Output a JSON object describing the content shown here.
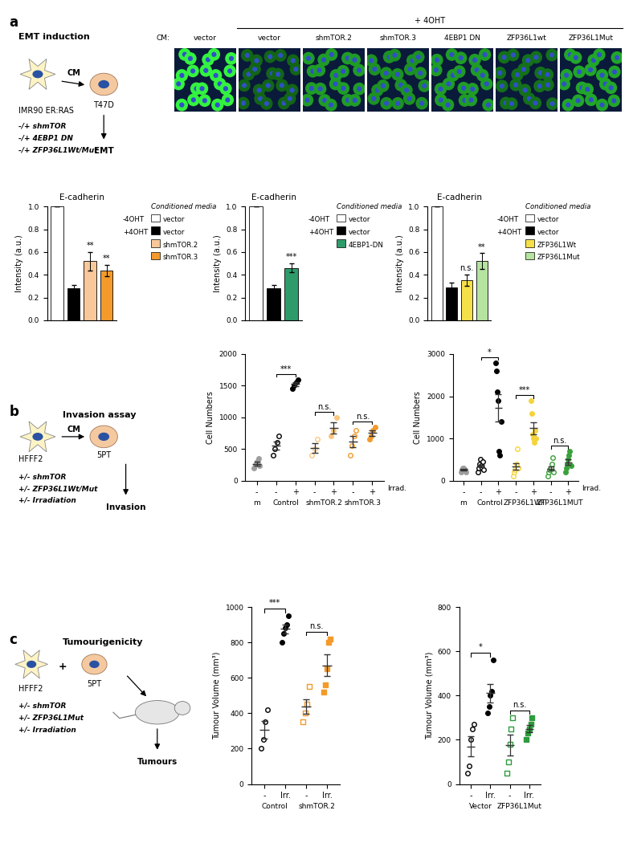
{
  "chart_data": [
    {
      "type": "bar",
      "title": "E-cadherin",
      "y_label": "Intensity (a.u.)",
      "categories": [
        null,
        null,
        null,
        null
      ],
      "values": [
        1.0,
        0.28,
        0.52,
        0.44
      ],
      "errors": [
        0,
        0.03,
        0.08,
        0.05
      ],
      "colors": [
        "#ffffff",
        "#000000",
        "#f8c89a",
        "#f39a2b"
      ],
      "marks": [
        null,
        null,
        "**",
        "**"
      ],
      "legend_title": "Conditioned media",
      "legend_groups": [
        "-4OHT",
        "+4OHT",
        "+4OHT",
        "+4OHT"
      ],
      "legend_entries": [
        "vector",
        "vector",
        "shmTOR.2",
        "shmTOR.3"
      ],
      "ylim": [
        0,
        1.0
      ],
      "yticks": [
        {
          "value": 0,
          "label": "0.0"
        },
        0.2,
        0.4,
        0.6,
        0.8,
        1.0
      ],
      "tick_labels": "y"
    },
    {
      "type": "bar",
      "title": "E-cadherin",
      "y_label": "Intensity (a.u.)",
      "categories": [
        null,
        null,
        null
      ],
      "values": [
        1.0,
        0.28,
        0.46
      ],
      "errors": [
        0,
        0.03,
        0.04
      ],
      "colors": [
        "#ffffff",
        "#000000",
        "#2e9b6a"
      ],
      "marks": [
        null,
        null,
        "***"
      ],
      "legend_title": "Conditioned media",
      "legend_groups": [
        "-4OHT",
        "+4OHT",
        "+4OHT"
      ],
      "legend_entries": [
        "vector",
        "vector",
        "4EBP1-DN"
      ],
      "ylim": [
        0,
        1.0
      ],
      "yticks": [
        {
          "value": 0,
          "label": "0.0"
        },
        0.2,
        0.4,
        0.6,
        0.8,
        1.0
      ],
      "tick_labels": "y"
    },
    {
      "type": "bar",
      "title": "E-cadherin",
      "y_label": "Intensity (a.u.)",
      "categories": [
        null,
        null,
        null,
        null
      ],
      "values": [
        1.0,
        0.29,
        0.35,
        0.52
      ],
      "errors": [
        0,
        0.04,
        0.05,
        0.07
      ],
      "colors": [
        "#ffffff",
        "#000000",
        "#f5e04a",
        "#b5e3a0"
      ],
      "marks": [
        null,
        null,
        "n.s.",
        "**"
      ],
      "legend_title": "Conditioned media",
      "legend_groups": [
        "-4OHT",
        "+4OHT",
        "+4OHT",
        "+4OHT"
      ],
      "legend_entries": [
        "vector",
        "vector",
        "ZFP36L1Wt",
        "ZFP36L1Mut"
      ],
      "ylim": [
        0,
        1.0
      ],
      "yticks": [
        {
          "value": 0,
          "label": "0.0"
        },
        0.2,
        0.4,
        0.6,
        0.8,
        1.0
      ],
      "tick_labels": "y"
    },
    {
      "type": "scatter",
      "y_label": "Cell Numbers",
      "categories": [
        "-",
        "-",
        "+",
        "-",
        "+",
        "-",
        "+"
      ],
      "groups": [
        {
          "label": "m",
          "positions": [
            0
          ]
        },
        {
          "label": "Control",
          "positions": [
            1,
            2
          ]
        },
        {
          "label": "shmTOR.2",
          "positions": [
            3,
            4
          ]
        },
        {
          "label": "shmTOR.3",
          "positions": [
            5,
            6
          ]
        }
      ],
      "irradiation_label": "Irrad.",
      "points": [
        [
          200,
          250,
          300,
          350,
          230
        ],
        [
          400,
          500,
          600,
          700
        ],
        [
          1450,
          1500,
          1550,
          1600
        ],
        [
          400,
          500,
          650
        ],
        [
          700,
          800,
          1000
        ],
        [
          400,
          550,
          700,
          800
        ],
        [
          650,
          700,
          800,
          850
        ]
      ],
      "colors": [
        "#9e9e9e",
        "#000000",
        "#000000",
        "#f9c77e",
        "#f9c77e",
        "#f39a2b",
        "#f39a2b"
      ],
      "filled": [
        true,
        false,
        true,
        false,
        true,
        false,
        true
      ],
      "markers": [
        "circle",
        "circle",
        "circle",
        "circle",
        "circle",
        "circle",
        "circle"
      ],
      "comparisons": [
        {
          "between": [
            1,
            2
          ],
          "label": "***"
        },
        {
          "between": [
            3,
            4
          ],
          "label": "n.s."
        },
        {
          "between": [
            5,
            6
          ],
          "label": "n.s."
        }
      ],
      "ylim": [
        0,
        2000
      ],
      "yticks": [
        0,
        500,
        1000,
        1500,
        2000
      ]
    },
    {
      "type": "scatter",
      "y_label": "Cell Numbers",
      "categories": [
        "-",
        "-",
        "+",
        "-",
        "+",
        "-",
        "+"
      ],
      "groups": [
        {
          "label": "m",
          "positions": [
            0
          ]
        },
        {
          "label": "Control",
          "positions": [
            1,
            2
          ]
        },
        {
          "label": "ZFP36L1WT",
          "positions": [
            3,
            4
          ]
        },
        {
          "label": "ZFP36L1MUT",
          "positions": [
            5,
            6
          ]
        }
      ],
      "irradiation_label": "Irrad.",
      "points": [
        [
          200,
          250,
          300,
          300,
          250,
          200
        ],
        [
          200,
          300,
          400,
          500,
          350,
          300,
          450,
          250
        ],
        [
          2800,
          2600,
          2100,
          1900,
          700,
          600,
          1400
        ],
        [
          100,
          200,
          250,
          300,
          400,
          750,
          300
        ],
        [
          1900,
          1600,
          1100,
          1000,
          900,
          1200,
          1000
        ],
        [
          100,
          200,
          250,
          300,
          400,
          550,
          200
        ],
        [
          200,
          300,
          400,
          500,
          600,
          700,
          350
        ]
      ],
      "colors": [
        "#9e9e9e",
        "#000000",
        "#000000",
        "#f5d43a",
        "#f5d43a",
        "#3aa23a",
        "#3aa23a"
      ],
      "filled": [
        true,
        false,
        true,
        false,
        true,
        false,
        true
      ],
      "markers": [
        "circle",
        "circle",
        "circle",
        "circle",
        "circle",
        "circle",
        "circle"
      ],
      "comparisons": [
        {
          "between": [
            1,
            2
          ],
          "label": "*"
        },
        {
          "between": [
            3,
            4
          ],
          "label": "***"
        },
        {
          "between": [
            5,
            6
          ],
          "label": "n.s."
        }
      ],
      "ylim": [
        0,
        3000
      ],
      "yticks": [
        0,
        1000,
        2000,
        3000
      ]
    },
    {
      "type": "scatter",
      "y_label": "Tumour Volume (mm³)",
      "categories": [
        "-",
        "Irr.",
        "-",
        "Irr."
      ],
      "groups": [
        {
          "label": "Control",
          "positions": [
            0,
            1
          ]
        },
        {
          "label": "shmTOR.2",
          "positions": [
            2,
            3
          ]
        }
      ],
      "points": [
        [
          200,
          250,
          350,
          420
        ],
        [
          800,
          850,
          880,
          900,
          950
        ],
        [
          350,
          400,
          450,
          550
        ],
        [
          520,
          560,
          650,
          800,
          820
        ]
      ],
      "colors": [
        "#000000",
        "#000000",
        "#f39a2b",
        "#f39a2b"
      ],
      "filled": [
        false,
        true,
        false,
        true
      ],
      "markers": [
        "circle",
        "circle",
        "square",
        "square"
      ],
      "comparisons": [
        {
          "between": [
            0,
            1
          ],
          "label": "***"
        },
        {
          "between": [
            2,
            3
          ],
          "label": "n.s."
        }
      ],
      "ylim": [
        0,
        1000
      ],
      "yticks": [
        0,
        200,
        400,
        600,
        800,
        1000
      ]
    },
    {
      "type": "scatter",
      "y_label": "Tumour Volume (mm³)",
      "categories": [
        "-",
        "Irr.",
        "-",
        "Irr."
      ],
      "groups": [
        {
          "label": "Vector",
          "positions": [
            0,
            1
          ]
        },
        {
          "label": "ZFP36L1Mut",
          "positions": [
            2,
            3
          ]
        }
      ],
      "points": [
        [
          50,
          80,
          200,
          250,
          270
        ],
        [
          320,
          350,
          400,
          420,
          560
        ],
        [
          50,
          100,
          180,
          250,
          300
        ],
        [
          200,
          230,
          250,
          270,
          300
        ]
      ],
      "colors": [
        "#000000",
        "#000000",
        "#2e9b3e",
        "#2e9b3e"
      ],
      "filled": [
        false,
        true,
        false,
        true
      ],
      "markers": [
        "circle",
        "circle",
        "square",
        "square"
      ],
      "comparisons": [
        {
          "between": [
            0,
            1
          ],
          "label": "*"
        },
        {
          "between": [
            2,
            3
          ],
          "label": "n.s."
        }
      ],
      "ylim": [
        0,
        800
      ],
      "yticks": [
        0,
        200,
        400,
        600,
        800
      ]
    }
  ],
  "diagram": {
    "panel_labels": [
      "a",
      "b",
      "c"
    ],
    "a": {
      "title": "EMT induction",
      "donor": "IMR90 ER:RAS",
      "conditions": [
        "-/+ shmTOR",
        "-/+ 4EBP1 DN",
        "-/+ ZFP36L1Wt/Mut"
      ],
      "transfer": "CM",
      "recipient": "T47D",
      "readout": "EMT",
      "treatment": "+ 4OHT",
      "row_label": "CM:",
      "image_labels": [
        "vector",
        "vector",
        "shmTOR.2",
        "shmTOR.3",
        "4EBP1 DN",
        "ZFP36L1wt",
        "ZFP36L1Mut"
      ]
    },
    "b": {
      "title": "Invasion assay",
      "donor": "HFFF2",
      "conditions": [
        "+/- shmTOR",
        "+/- ZFP36L1Wt/Mut",
        "+/- Irradiation"
      ],
      "transfer": "CM",
      "recipient": "5PT",
      "readout": "Invasion"
    },
    "c": {
      "title": "Tumourigenicity",
      "donor": "HFFF2",
      "conditions": [
        "+/- shmTOR",
        "+/- ZFP36L1Mut",
        "+/- Irradiation"
      ],
      "transfer": "+",
      "recipient": "5PT",
      "readout": "Tumours"
    }
  }
}
